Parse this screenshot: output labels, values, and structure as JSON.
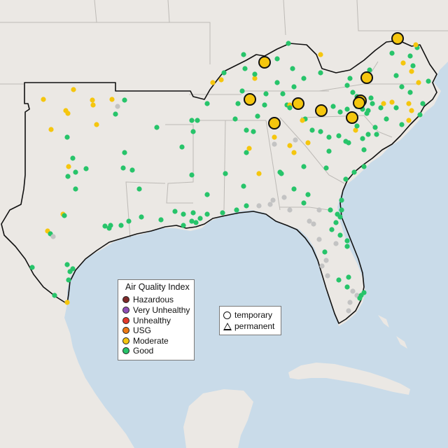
{
  "map": {
    "colors": {
      "water": "#c9dbe9",
      "land": "#ebe8e4",
      "outline": "#111111",
      "border": "#bdbab6"
    }
  },
  "legend_aqi": {
    "title": "Air Quality Index",
    "items": [
      {
        "label": "Hazardous",
        "color": "#7e2a2a"
      },
      {
        "label": "Very Unhealthy",
        "color": "#8f4fb8"
      },
      {
        "label": "Unhealthy",
        "color": "#e33a2c"
      },
      {
        "label": "USG",
        "color": "#ee7a14"
      },
      {
        "label": "Moderate",
        "color": "#f5c60e"
      },
      {
        "label": "Good",
        "color": "#27c46a"
      }
    ]
  },
  "legend_type": {
    "items": [
      {
        "label": "temporary",
        "icon": "circle-icon"
      },
      {
        "label": "permanent",
        "icon": "triangle-icon"
      }
    ]
  },
  "markers": {
    "large_moderate": 10
  }
}
